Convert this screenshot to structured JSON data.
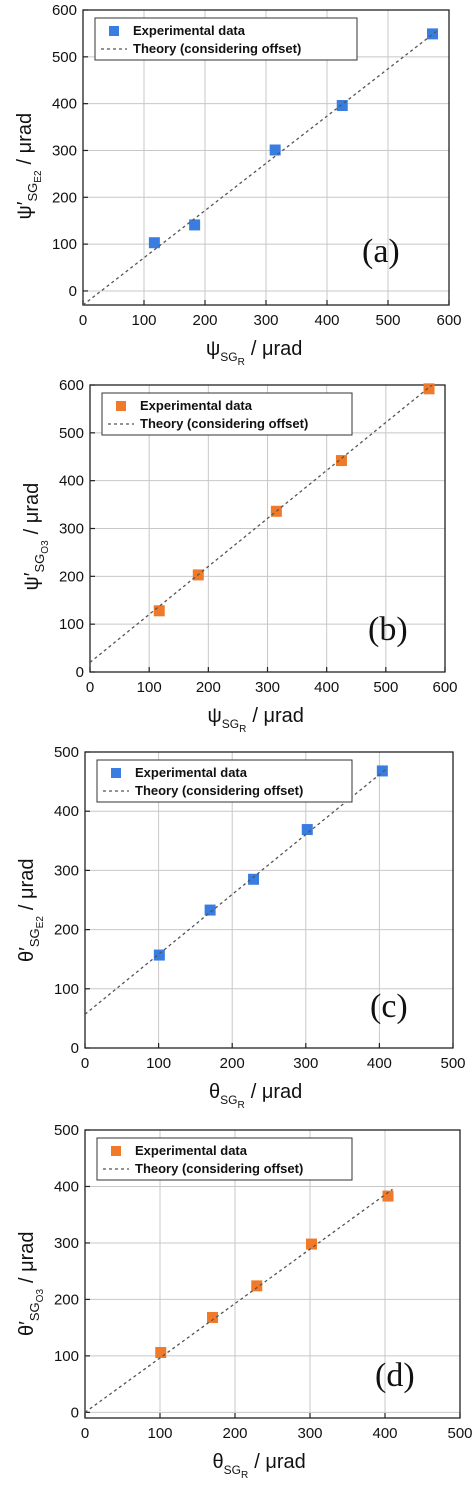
{
  "chart_data": [
    {
      "type": "scatter",
      "panel": "(a)",
      "xlabel": {
        "sym": "ψ",
        "sub": "SG",
        "subsub": "R",
        "unit": "/ μrad"
      },
      "ylabel": {
        "sym": "ψ′",
        "sub": "SG",
        "subsub": "E2",
        "unit": "/ μrad"
      },
      "xlim": [
        0,
        600
      ],
      "ylim": [
        -30,
        600
      ],
      "xticks": [
        0,
        100,
        200,
        300,
        400,
        500,
        600
      ],
      "yticks": [
        0,
        100,
        200,
        300,
        400,
        500,
        600
      ],
      "grid": true,
      "legend_position": "top-left",
      "series": [
        {
          "name": "Experimental data",
          "kind": "markers",
          "color": "#3a7de0",
          "x": [
            117,
            183,
            315,
            425,
            573
          ],
          "y": [
            103,
            141,
            301,
            396,
            549
          ]
        },
        {
          "name": "Theory (considering offset)",
          "kind": "dashed-line",
          "color": "#555555",
          "x": [
            0,
            580
          ],
          "y": [
            -30,
            555
          ]
        }
      ]
    },
    {
      "type": "scatter",
      "panel": "(b)",
      "xlabel": {
        "sym": "ψ",
        "sub": "SG",
        "subsub": "R",
        "unit": "/ μrad"
      },
      "ylabel": {
        "sym": "ψ′",
        "sub": "SG",
        "subsub": "O3",
        "unit": "/ μrad"
      },
      "xlim": [
        0,
        600
      ],
      "ylim": [
        0,
        600
      ],
      "xticks": [
        0,
        100,
        200,
        300,
        400,
        500,
        600
      ],
      "yticks": [
        0,
        100,
        200,
        300,
        400,
        500,
        600
      ],
      "grid": true,
      "legend_position": "top-left",
      "series": [
        {
          "name": "Experimental data",
          "kind": "markers",
          "color": "#f07a2a",
          "x": [
            117,
            183,
            315,
            425,
            573
          ],
          "y": [
            128,
            203,
            336,
            442,
            592
          ]
        },
        {
          "name": "Theory (considering offset)",
          "kind": "dashed-line",
          "color": "#555555",
          "x": [
            0,
            580
          ],
          "y": [
            20,
            602
          ]
        }
      ]
    },
    {
      "type": "scatter",
      "panel": "(c)",
      "xlabel": {
        "sym": "θ",
        "sub": "SG",
        "subsub": "R",
        "unit": "/ μrad"
      },
      "ylabel": {
        "sym": "θ′",
        "sub": "SG",
        "subsub": "E2",
        "unit": "/ μrad"
      },
      "xlim": [
        0,
        500
      ],
      "ylim": [
        0,
        500
      ],
      "xticks": [
        0,
        100,
        200,
        300,
        400,
        500
      ],
      "yticks": [
        0,
        100,
        200,
        300,
        400,
        500
      ],
      "grid": true,
      "legend_position": "top-left",
      "series": [
        {
          "name": "Experimental data",
          "kind": "markers",
          "color": "#3a7de0",
          "x": [
            101,
            170,
            229,
            302,
            404
          ],
          "y": [
            157,
            233,
            285,
            369,
            468
          ]
        },
        {
          "name": "Theory (considering offset)",
          "kind": "dashed-line",
          "color": "#555555",
          "x": [
            0,
            410
          ],
          "y": [
            57,
            472
          ]
        }
      ]
    },
    {
      "type": "scatter",
      "panel": "(d)",
      "xlabel": {
        "sym": "θ",
        "sub": "SG",
        "subsub": "R",
        "unit": "/ μrad"
      },
      "ylabel": {
        "sym": "θ′",
        "sub": "SG",
        "subsub": "O3",
        "unit": "/ μrad"
      },
      "xlim": [
        0,
        500
      ],
      "ylim": [
        -10,
        500
      ],
      "xticks": [
        0,
        100,
        200,
        300,
        400,
        500
      ],
      "yticks": [
        0,
        100,
        200,
        300,
        400,
        500
      ],
      "grid": true,
      "legend_position": "top-left",
      "series": [
        {
          "name": "Experimental data",
          "kind": "markers",
          "color": "#f07a2a",
          "x": [
            101,
            170,
            229,
            302,
            404
          ],
          "y": [
            106,
            168,
            224,
            298,
            383
          ]
        },
        {
          "name": "Theory (considering offset)",
          "kind": "dashed-line",
          "color": "#555555",
          "x": [
            0,
            410
          ],
          "y": [
            0,
            395
          ]
        }
      ]
    }
  ]
}
